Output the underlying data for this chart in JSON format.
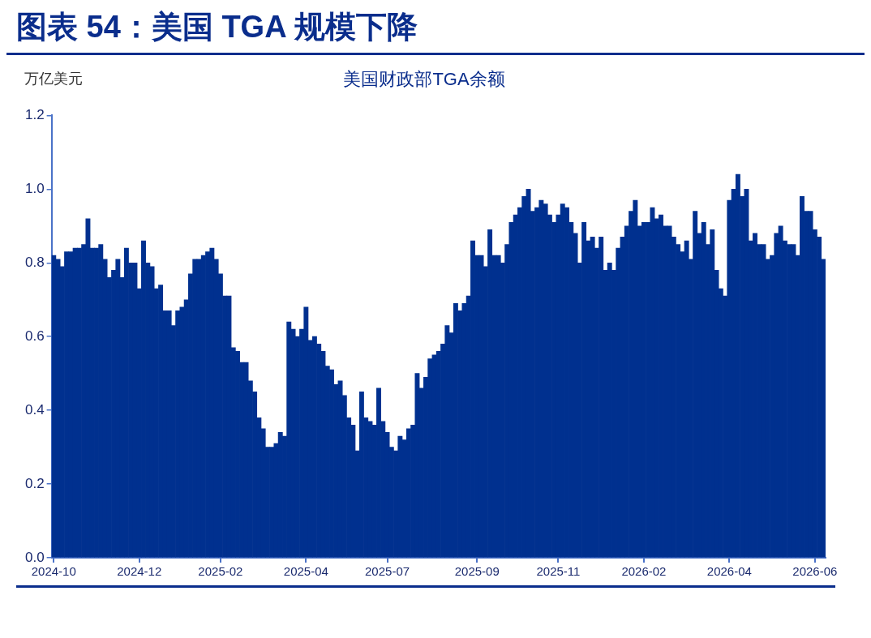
{
  "chart_data": {
    "type": "bar",
    "title": "图表 54：美国 TGA 规模下降",
    "subtitle": "美国财政部TGA余额",
    "ylabel": "万亿美元",
    "categories": [
      "2024-10",
      null,
      null,
      null,
      null,
      null,
      null,
      null,
      null,
      null,
      null,
      null,
      null,
      null,
      null,
      null,
      null,
      null,
      null,
      null,
      "2024-12",
      null,
      null,
      null,
      null,
      null,
      null,
      null,
      null,
      null,
      null,
      null,
      null,
      null,
      null,
      null,
      null,
      null,
      null,
      "2025-02",
      null,
      null,
      null,
      null,
      null,
      null,
      null,
      null,
      null,
      null,
      null,
      null,
      null,
      null,
      null,
      null,
      null,
      null,
      null,
      "2025-04",
      null,
      null,
      null,
      null,
      null,
      null,
      null,
      null,
      null,
      null,
      null,
      null,
      null,
      null,
      null,
      null,
      null,
      null,
      "2025-07",
      null,
      null,
      null,
      null,
      null,
      null,
      null,
      null,
      null,
      null,
      null,
      null,
      null,
      null,
      null,
      null,
      null,
      null,
      null,
      null,
      "2025-09",
      null,
      null,
      null,
      null,
      null,
      null,
      null,
      null,
      null,
      null,
      null,
      null,
      null,
      null,
      null,
      null,
      null,
      null,
      "2025-11",
      null,
      null,
      null,
      null,
      null,
      null,
      null,
      null,
      null,
      null,
      null,
      null,
      null,
      null,
      null,
      null,
      null,
      null,
      null,
      "2026-02",
      null,
      null,
      null,
      null,
      null,
      null,
      null,
      null,
      null,
      null,
      null,
      null,
      null,
      null,
      null,
      null,
      null,
      null,
      null,
      "2026-04",
      null,
      null,
      null,
      null,
      null,
      null,
      null,
      null,
      null,
      null,
      null,
      null,
      null,
      null,
      null,
      null,
      null,
      null,
      null,
      "2026-06",
      null,
      null
    ],
    "values": [
      0.82,
      0.81,
      0.79,
      0.83,
      0.83,
      0.84,
      0.84,
      0.85,
      0.92,
      0.84,
      0.84,
      0.85,
      0.81,
      0.76,
      0.78,
      0.81,
      0.76,
      0.84,
      0.8,
      0.8,
      0.73,
      0.86,
      0.8,
      0.79,
      0.73,
      0.74,
      0.67,
      0.67,
      0.63,
      0.67,
      0.68,
      0.7,
      0.77,
      0.81,
      0.81,
      0.82,
      0.83,
      0.84,
      0.81,
      0.77,
      0.71,
      0.71,
      0.57,
      0.56,
      0.53,
      0.53,
      0.48,
      0.45,
      0.38,
      0.35,
      0.3,
      0.3,
      0.31,
      0.34,
      0.33,
      0.64,
      0.62,
      0.6,
      0.62,
      0.68,
      0.59,
      0.6,
      0.58,
      0.56,
      0.52,
      0.51,
      0.47,
      0.48,
      0.44,
      0.38,
      0.36,
      0.29,
      0.45,
      0.38,
      0.37,
      0.36,
      0.46,
      0.37,
      0.34,
      0.3,
      0.29,
      0.33,
      0.32,
      0.35,
      0.36,
      0.5,
      0.46,
      0.49,
      0.54,
      0.55,
      0.56,
      0.58,
      0.63,
      0.61,
      0.69,
      0.67,
      0.69,
      0.71,
      0.86,
      0.82,
      0.82,
      0.79,
      0.89,
      0.82,
      0.82,
      0.8,
      0.85,
      0.91,
      0.93,
      0.95,
      0.98,
      1.0,
      0.94,
      0.95,
      0.97,
      0.96,
      0.93,
      0.91,
      0.93,
      0.96,
      0.95,
      0.91,
      0.88,
      0.8,
      0.91,
      0.86,
      0.87,
      0.84,
      0.87,
      0.78,
      0.8,
      0.78,
      0.84,
      0.87,
      0.9,
      0.94,
      0.97,
      0.9,
      0.91,
      0.91,
      0.95,
      0.92,
      0.93,
      0.9,
      0.9,
      0.87,
      0.85,
      0.83,
      0.86,
      0.81,
      0.94,
      0.88,
      0.91,
      0.85,
      0.89,
      0.78,
      0.73,
      0.71,
      0.97,
      1.0,
      1.04,
      0.98,
      1.0,
      0.86,
      0.88,
      0.85,
      0.85,
      0.81,
      0.82,
      0.88,
      0.9,
      0.86,
      0.85,
      0.85,
      0.82,
      0.98,
      0.94,
      0.94,
      0.89,
      0.87,
      0.81
    ],
    "color": "#00308f",
    "ylim": [
      0,
      1.2
    ],
    "yticks": [
      {
        "value": 0,
        "label": "0.0"
      },
      0.2,
      0.4,
      0.6,
      0.8,
      {
        "value": 1,
        "label": "1.0"
      },
      1.2
    ]
  }
}
